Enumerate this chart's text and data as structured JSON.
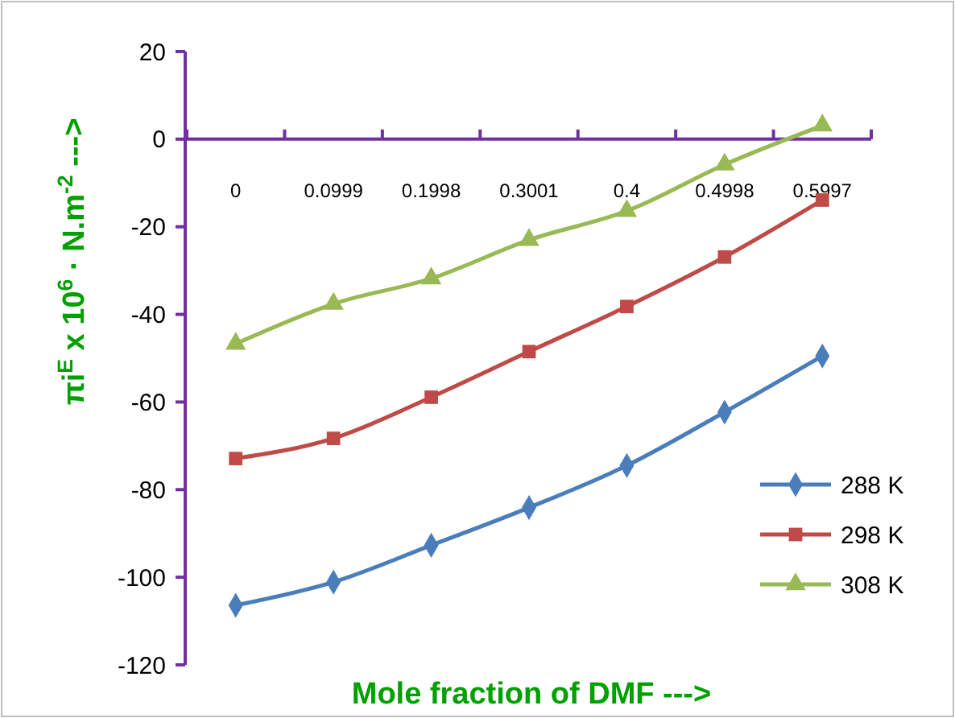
{
  "chart_data": {
    "type": "line",
    "categories": [
      "0",
      "0.0999",
      "0.1998",
      "0.3001",
      "0.4",
      "0.4998",
      "0.5997"
    ],
    "series": [
      {
        "name": "288 K",
        "color": "#4a7ebb",
        "marker": "diamond",
        "values": [
          -106.4,
          -101.1,
          -92.7,
          -84.1,
          -74.5,
          -62.3,
          -49.5
        ]
      },
      {
        "name": "298 K",
        "color": "#be4b48",
        "marker": "square",
        "values": [
          -72.9,
          -68.3,
          -58.9,
          -48.5,
          -38.2,
          -26.9,
          -13.9
        ]
      },
      {
        "name": "308 K",
        "color": "#98b954",
        "marker": "triangle",
        "values": [
          -46.7,
          -37.6,
          -31.8,
          -23,
          -16.4,
          -5.8,
          3.1
        ]
      }
    ],
    "xlabel": "Mole fraction of DMF --->",
    "ylabel": "πi$^{E}$ x 10$^{6}$ · N.m$^{-2}$  --->",
    "ylim": [
      -120,
      20
    ],
    "yticks": [
      -120,
      -100,
      -80,
      -60,
      -40,
      -20,
      0,
      20
    ],
    "grid": false,
    "legend": "right"
  }
}
